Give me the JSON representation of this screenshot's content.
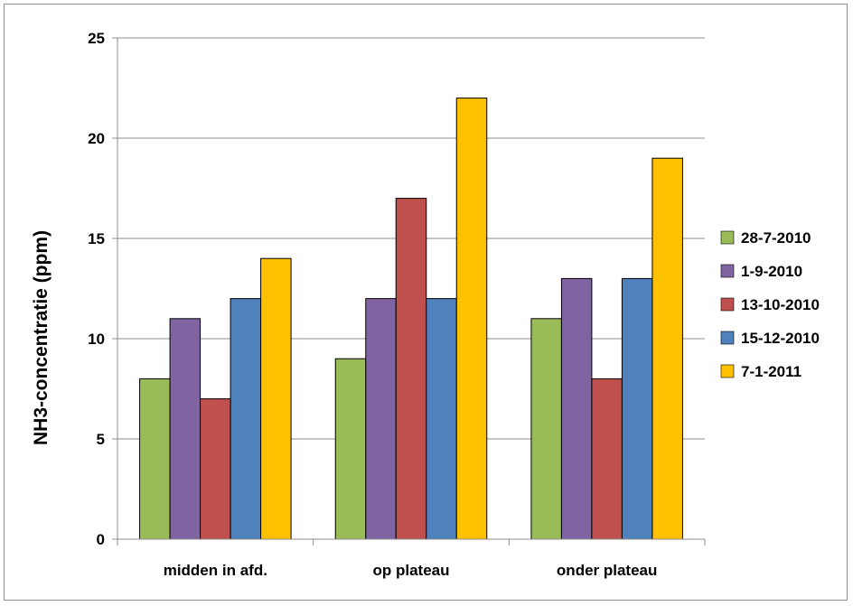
{
  "chart_data": {
    "type": "bar",
    "categories": [
      "midden in afd.",
      "op plateau",
      "onder plateau"
    ],
    "series": [
      {
        "name": "28-7-2010",
        "color": "#9bbb59",
        "values": [
          8,
          9,
          11
        ]
      },
      {
        "name": "1-9-2010",
        "color": "#8064a2",
        "values": [
          11,
          12,
          13
        ]
      },
      {
        "name": "13-10-2010",
        "color": "#c0504d",
        "values": [
          7,
          17,
          8
        ]
      },
      {
        "name": "15-12-2010",
        "color": "#4f81bd",
        "values": [
          12,
          12,
          13
        ]
      },
      {
        "name": "7-1-2011",
        "color": "#ffc000",
        "values": [
          14,
          22,
          19
        ]
      }
    ],
    "ylabel": "NH3-concentratie (ppm)",
    "xlabel": "",
    "ylim": [
      0,
      25
    ],
    "yticks": [
      "0",
      "5",
      "10",
      "15",
      "20",
      "25"
    ],
    "grid": true,
    "legend_position": "right"
  }
}
